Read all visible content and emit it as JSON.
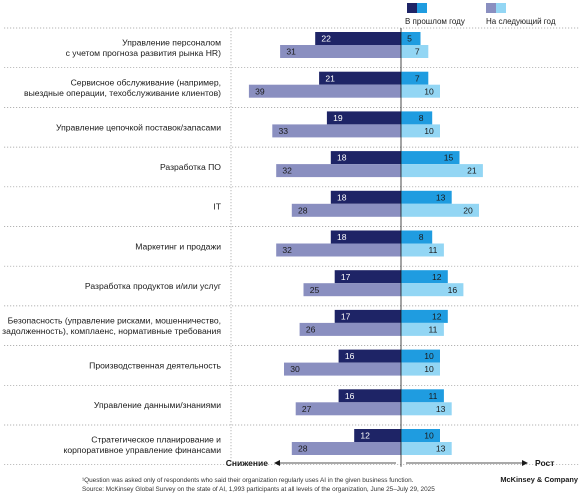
{
  "chart_data": {
    "type": "bar",
    "orientation": "horizontal-diverging",
    "categories": [
      [
        "Управление персоналом",
        "с учетом прогноза развития рынка HR)"
      ],
      [
        "Сервисное обслуживание (например,",
        "выездные операции, техобслуживание клиентов)"
      ],
      [
        "Управление цепочкой поставок/запасами"
      ],
      [
        "Разработка ПО"
      ],
      [
        "IT"
      ],
      [
        "Маркетинг и продажи"
      ],
      [
        "Разработка продуктов и/или услуг"
      ],
      [
        "Безопасность (управление рисками, мошенничество,",
        "задолженность), комплаенс, нормативные требования"
      ],
      [
        "Производственная деятельность"
      ],
      [
        "Управление данными/знаниями"
      ],
      [
        "Стратегическое планирование и",
        "корпоративное управление финансами"
      ]
    ],
    "legend": {
      "past": "В прошлом году",
      "next": "На следующий год"
    },
    "decrease_past": [
      22,
      21,
      19,
      18,
      18,
      18,
      17,
      17,
      16,
      16,
      12
    ],
    "decrease_next": [
      31,
      39,
      33,
      32,
      28,
      32,
      25,
      26,
      30,
      27,
      28
    ],
    "increase_past": [
      5,
      7,
      8,
      15,
      13,
      8,
      12,
      12,
      10,
      11,
      10
    ],
    "increase_next": [
      7,
      10,
      10,
      21,
      20,
      11,
      16,
      11,
      10,
      13,
      13
    ],
    "axis": {
      "left_label": "Снижение",
      "right_label": "Рост"
    },
    "colors": {
      "decrease_past": "#1e2466",
      "decrease_next": "#8a8fc0",
      "increase_past": "#1f9ce0",
      "increase_next": "#93d6f4"
    }
  },
  "footnote": "¹Question was asked only of respondents who said their organization regularly uses AI in the given business function.",
  "source": "Source: McKinsey Global Survey on the state of AI, 1,993 participants at all levels of the organization, June 25–July 29, 2025",
  "brand": "McKinsey & Company"
}
